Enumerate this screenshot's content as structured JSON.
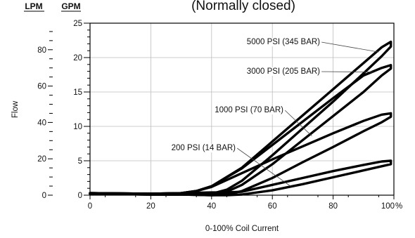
{
  "chart_data": {
    "type": "line",
    "title": "(Normally closed)",
    "xlabel": "0-100% Coil Current",
    "ylabel": "Flow",
    "x_unit": "%",
    "left_axis_heading": "LPM",
    "right_axis_heading": "GPM",
    "xlim": [
      0,
      100
    ],
    "ylim_gpm": [
      0,
      25
    ],
    "ylim_lpm_approx": [
      0,
      94.6
    ],
    "x_ticks": [
      "0",
      "20",
      "40",
      "60",
      "80",
      "100"
    ],
    "gpm_ticks": [
      "0",
      "5",
      "10",
      "15",
      "20",
      "25"
    ],
    "lpm_ticks": [
      "0",
      "20",
      "40",
      "60",
      "80"
    ],
    "grid": true,
    "legend": "none",
    "series": [
      {
        "name": "5000 PSI (345 BAR)",
        "x": [
          0,
          20,
          30,
          35,
          40,
          50,
          60,
          70,
          80,
          90,
          96,
          99,
          99,
          96,
          90,
          80,
          70,
          60,
          50,
          45,
          40,
          30,
          20,
          0
        ],
        "y": [
          0.3,
          0.2,
          0.3,
          0.6,
          1.3,
          4.0,
          7.8,
          11.6,
          15.4,
          19.2,
          21.5,
          22.3,
          21.6,
          20.2,
          17.7,
          13.6,
          9.7,
          5.8,
          2.1,
          0.8,
          0.2,
          0.1,
          0.1,
          0.2
        ]
      },
      {
        "name": "3000 PSI (205 BAR)",
        "x": [
          0,
          20,
          30,
          35,
          40,
          50,
          60,
          70,
          80,
          90,
          96,
          99,
          99,
          96,
          90,
          80,
          70,
          60,
          50,
          45,
          40,
          30,
          20,
          0
        ],
        "y": [
          0.3,
          0.2,
          0.3,
          0.6,
          1.3,
          3.9,
          7.3,
          10.7,
          14.1,
          17.4,
          18.5,
          18.9,
          18.4,
          17.4,
          15.0,
          11.5,
          8.0,
          4.5,
          1.5,
          0.5,
          0.1,
          0.1,
          0.1,
          0.2
        ]
      },
      {
        "name": "1000 PSI (70 BAR)",
        "x": [
          0,
          20,
          30,
          35,
          40,
          50,
          60,
          70,
          80,
          90,
          96,
          99,
          99,
          96,
          90,
          80,
          70,
          60,
          50,
          45,
          40,
          30,
          20,
          0
        ],
        "y": [
          0.3,
          0.2,
          0.3,
          0.6,
          1.2,
          3.2,
          5.2,
          7.1,
          9.0,
          10.8,
          11.7,
          11.9,
          11.4,
          10.6,
          9.3,
          7.0,
          4.8,
          2.5,
          0.6,
          0.1,
          0.0,
          0.1,
          0.1,
          0.2
        ]
      },
      {
        "name": "200 PSI (14 BAR)",
        "x": [
          0,
          20,
          30,
          40,
          45,
          50,
          60,
          70,
          80,
          90,
          96,
          99,
          99,
          96,
          90,
          80,
          70,
          60,
          50,
          45,
          40,
          30,
          20,
          0
        ],
        "y": [
          0.3,
          0.2,
          0.3,
          0.4,
          0.4,
          0.5,
          1.5,
          2.5,
          3.5,
          4.4,
          4.9,
          5.0,
          4.5,
          4.2,
          3.6,
          2.6,
          1.6,
          0.7,
          0.1,
          0.0,
          0.0,
          0.1,
          0.1,
          0.2
        ]
      }
    ]
  }
}
